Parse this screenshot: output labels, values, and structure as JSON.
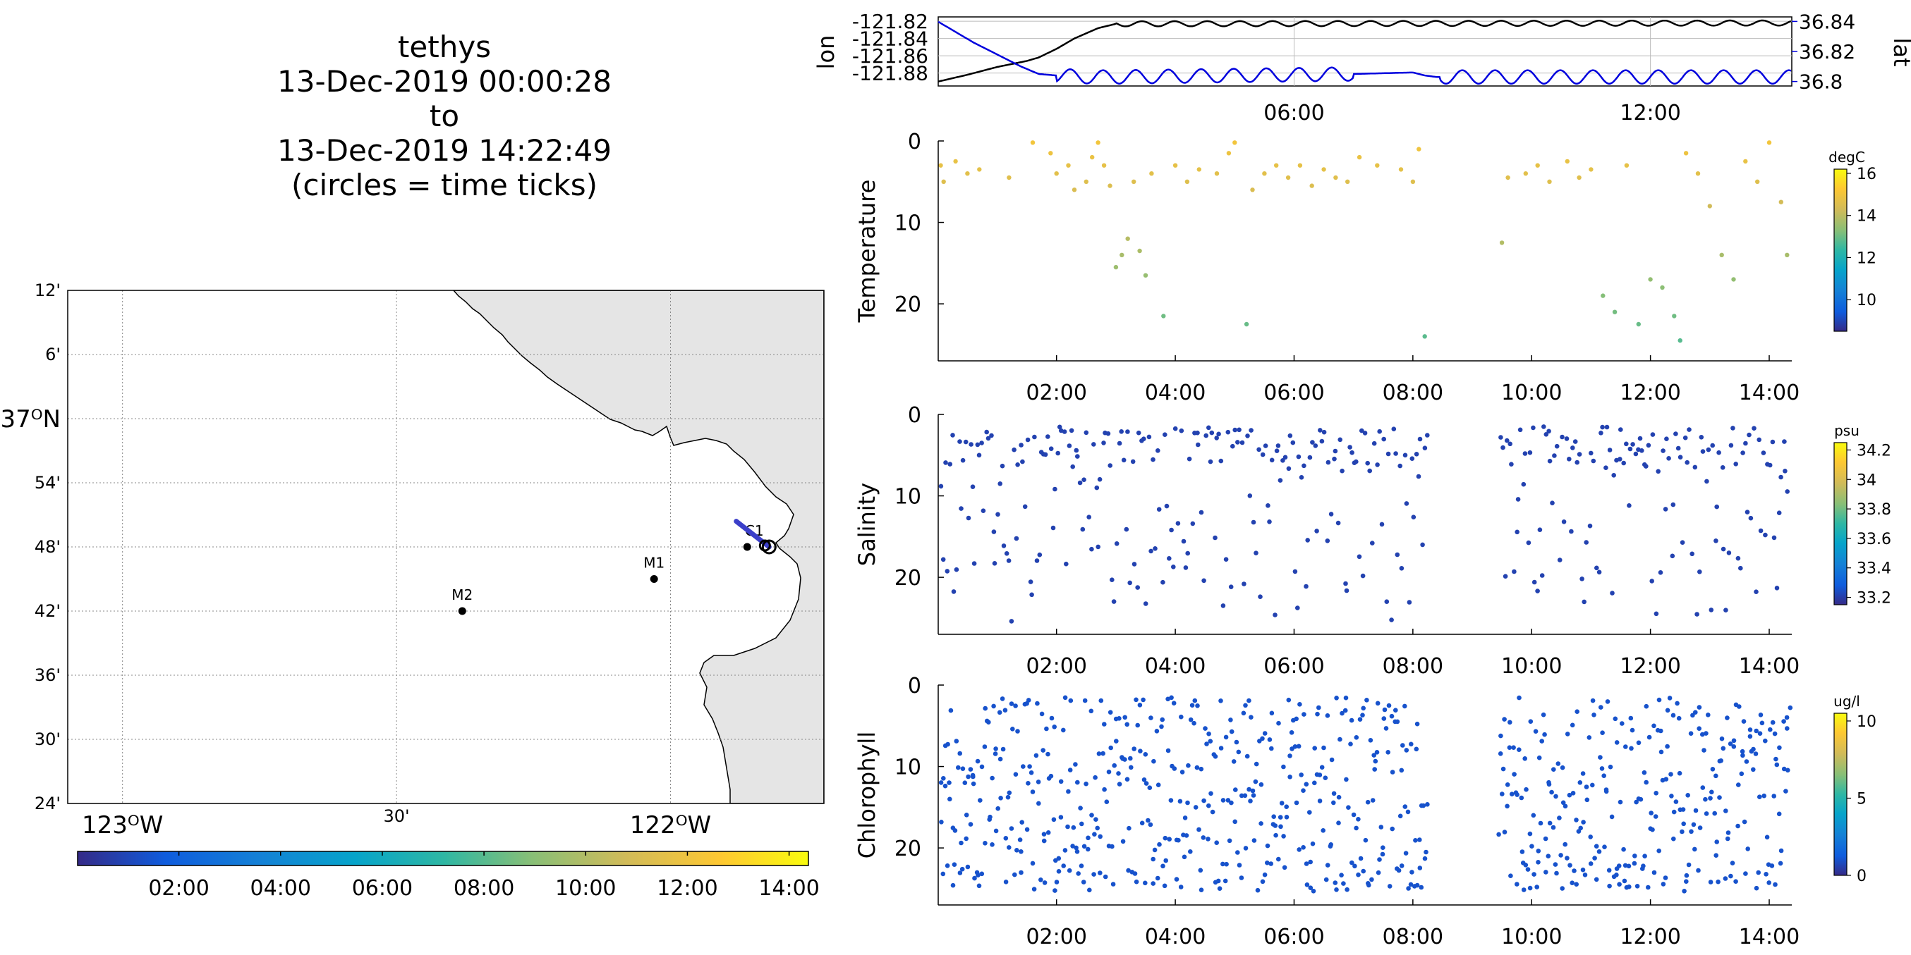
{
  "header": {
    "vehicle": "tethys",
    "start": "13-Dec-2019 00:00:28",
    "to": "to",
    "end": "13-Dec-2019 14:22:49",
    "note": "(circles = time ticks)"
  },
  "colors": {
    "track": "#3b3fc9",
    "lon_line": "#000000",
    "lat_line": "#0000dd",
    "land": "#e5e5e5",
    "coast": "#000000",
    "grid": "#888888"
  },
  "chart_data": [
    {
      "type": "map",
      "name": "track-map",
      "lat_tick_labels": [
        "12'",
        "6'",
        "37ᴼN",
        "54'",
        "48'",
        "42'",
        "36'",
        "30'",
        "24'"
      ],
      "lat_ticks": [
        37.2,
        37.1,
        37.0,
        36.9,
        36.8,
        36.7,
        36.6,
        36.5,
        36.4
      ],
      "lon_tick_labels": [
        "123ᴼW",
        "30'",
        "122ᴼW"
      ],
      "lon_ticks": [
        -123.0,
        -122.5,
        -122.0
      ],
      "xlim": [
        -123.1,
        -121.72
      ],
      "ylim": [
        36.4,
        37.2
      ],
      "stations": [
        {
          "name": "M2",
          "lon": -122.38,
          "lat": 36.7
        },
        {
          "name": "M1",
          "lon": -122.03,
          "lat": 36.75
        },
        {
          "name": "C1",
          "lon": -121.86,
          "lat": 36.8
        }
      ],
      "track": {
        "lon_range": [
          -121.88,
          -121.82
        ],
        "lat_range": [
          36.8,
          36.84
        ]
      },
      "colorbar": {
        "ticks": [
          "02:00",
          "04:00",
          "06:00",
          "08:00",
          "10:00",
          "12:00",
          "14:00"
        ],
        "range_hours": [
          0.008,
          14.38
        ]
      }
    },
    {
      "type": "line",
      "name": "lon-lat-plot",
      "ylabel": "lon",
      "ylabel_right": "lat",
      "x_tick_labels": [
        "06:00",
        "12:00"
      ],
      "x_ticks": [
        6,
        12
      ],
      "xlim": [
        0.008,
        14.38
      ],
      "lon_tick_labels": [
        "-121.82",
        "-121.84",
        "-121.86",
        "-121.88"
      ],
      "lon_ticks": [
        -121.82,
        -121.84,
        -121.86,
        -121.88
      ],
      "lon_ylim": [
        -121.895,
        -121.815
      ],
      "lat_tick_labels": [
        "36.84",
        "36.82",
        "36.8"
      ],
      "lat_ticks": [
        36.84,
        36.82,
        36.8
      ],
      "lat_ylim": [
        36.797,
        36.843
      ],
      "series": [
        {
          "name": "lon",
          "x": [
            0.0,
            0.5,
            1.0,
            1.5,
            1.7,
            2.0,
            2.3,
            2.7,
            3.0,
            14.38
          ],
          "y": [
            -121.89,
            -121.882,
            -121.873,
            -121.866,
            -121.862,
            -121.852,
            -121.84,
            -121.828,
            -121.823,
            -121.822
          ]
        },
        {
          "name": "lat",
          "x": [
            0.0,
            0.3,
            0.6,
            1.0,
            1.4,
            1.7,
            2.0,
            2.6,
            3.0,
            7.0,
            8.0,
            8.2,
            8.4,
            14.38
          ],
          "y": [
            36.84,
            36.833,
            36.826,
            36.818,
            36.81,
            36.805,
            36.804,
            36.803,
            36.803,
            36.805,
            36.806,
            36.804,
            36.803,
            36.803
          ]
        }
      ]
    },
    {
      "type": "scatter",
      "name": "temperature-plot",
      "ylabel": "Temperature",
      "unit": "degC",
      "x_tick_labels": [
        "02:00",
        "04:00",
        "06:00",
        "08:00",
        "10:00",
        "12:00",
        "14:00"
      ],
      "x_ticks": [
        2,
        4,
        6,
        8,
        10,
        12,
        14
      ],
      "xlim": [
        0.008,
        14.38
      ],
      "y_tick_labels": [
        "0",
        "10",
        "20"
      ],
      "y_ticks": [
        0,
        10,
        20
      ],
      "ylim": [
        0,
        27
      ],
      "colorbar": {
        "tick_labels": [
          "16",
          "14",
          "12",
          "10"
        ],
        "ticks": [
          16,
          14,
          12,
          10
        ],
        "range": [
          8.5,
          16.2
        ]
      },
      "gaps_hours": [
        [
          8.25,
          9.45
        ]
      ],
      "points": [
        [
          0.05,
          3
        ],
        [
          0.1,
          5
        ],
        [
          0.3,
          2.5
        ],
        [
          0.5,
          4
        ],
        [
          0.7,
          3.5
        ],
        [
          1.2,
          4.5
        ],
        [
          1.6,
          0.2
        ],
        [
          1.9,
          1.5
        ],
        [
          2.0,
          4
        ],
        [
          2.2,
          3
        ],
        [
          2.3,
          6
        ],
        [
          2.5,
          5
        ],
        [
          2.6,
          2
        ],
        [
          2.7,
          0.2
        ],
        [
          2.8,
          3
        ],
        [
          2.9,
          5.5
        ],
        [
          3.0,
          15.5
        ],
        [
          3.1,
          14
        ],
        [
          3.2,
          12
        ],
        [
          3.3,
          5
        ],
        [
          3.4,
          13.5
        ],
        [
          3.5,
          16.5
        ],
        [
          3.6,
          4
        ],
        [
          3.8,
          21.5
        ],
        [
          4.0,
          3
        ],
        [
          4.2,
          5
        ],
        [
          4.4,
          3.5
        ],
        [
          4.7,
          4
        ],
        [
          4.9,
          1.5
        ],
        [
          5.0,
          0.2
        ],
        [
          5.2,
          22.5
        ],
        [
          5.3,
          6
        ],
        [
          5.5,
          4
        ],
        [
          5.7,
          3
        ],
        [
          5.9,
          4.5
        ],
        [
          6.1,
          3
        ],
        [
          6.3,
          5.5
        ],
        [
          6.5,
          3.5
        ],
        [
          6.7,
          4.5
        ],
        [
          6.9,
          5
        ],
        [
          7.1,
          2
        ],
        [
          7.4,
          3
        ],
        [
          7.8,
          3.5
        ],
        [
          8.0,
          5
        ],
        [
          8.1,
          1
        ],
        [
          8.2,
          24
        ],
        [
          9.5,
          12.5
        ],
        [
          9.6,
          4.5
        ],
        [
          9.9,
          4
        ],
        [
          10.1,
          3
        ],
        [
          10.3,
          5
        ],
        [
          10.6,
          2.5
        ],
        [
          10.8,
          4.5
        ],
        [
          11.0,
          3.5
        ],
        [
          11.2,
          19
        ],
        [
          11.4,
          21
        ],
        [
          11.6,
          3
        ],
        [
          11.8,
          22.5
        ],
        [
          12.0,
          17
        ],
        [
          12.2,
          18
        ],
        [
          12.4,
          21.5
        ],
        [
          12.5,
          24.5
        ],
        [
          12.6,
          1.5
        ],
        [
          12.8,
          4
        ],
        [
          13.0,
          8
        ],
        [
          13.2,
          14
        ],
        [
          13.4,
          17
        ],
        [
          13.6,
          2.5
        ],
        [
          13.8,
          5
        ],
        [
          14.0,
          0.2
        ],
        [
          14.2,
          7.5
        ],
        [
          14.3,
          14
        ]
      ]
    },
    {
      "type": "scatter",
      "name": "salinity-plot",
      "ylabel": "Salinity",
      "unit": "psu",
      "x_tick_labels": [
        "02:00",
        "04:00",
        "06:00",
        "08:00",
        "10:00",
        "12:00",
        "14:00"
      ],
      "x_ticks": [
        2,
        4,
        6,
        8,
        10,
        12,
        14
      ],
      "xlim": [
        0.008,
        14.38
      ],
      "y_tick_labels": [
        "0",
        "10",
        "20"
      ],
      "y_ticks": [
        0,
        10,
        20
      ],
      "ylim": [
        0,
        27
      ],
      "colorbar": {
        "tick_labels": [
          "34.2",
          "34",
          "33.8",
          "33.6",
          "33.4",
          "33.2"
        ],
        "ticks": [
          34.2,
          34.0,
          33.8,
          33.6,
          33.4,
          33.2
        ],
        "range": [
          33.15,
          34.25
        ]
      },
      "gaps_hours": [
        [
          8.25,
          9.45
        ]
      ],
      "point_density": 26
    },
    {
      "type": "scatter",
      "name": "chlorophyll-plot",
      "ylabel": "Chlorophyll",
      "unit": "ug/l",
      "x_tick_labels": [
        "02:00",
        "04:00",
        "06:00",
        "08:00",
        "10:00",
        "12:00",
        "14:00"
      ],
      "x_ticks": [
        2,
        4,
        6,
        8,
        10,
        12,
        14
      ],
      "xlim": [
        0.008,
        14.38
      ],
      "y_tick_labels": [
        "0",
        "10",
        "20"
      ],
      "y_ticks": [
        0,
        10,
        20
      ],
      "ylim": [
        0,
        27
      ],
      "colorbar": {
        "tick_labels": [
          "10",
          "5",
          "0"
        ],
        "ticks": [
          10,
          5,
          0
        ],
        "range": [
          0,
          10.5
        ]
      },
      "gaps_hours": [
        [
          8.25,
          9.45
        ]
      ],
      "point_density": 55
    }
  ]
}
